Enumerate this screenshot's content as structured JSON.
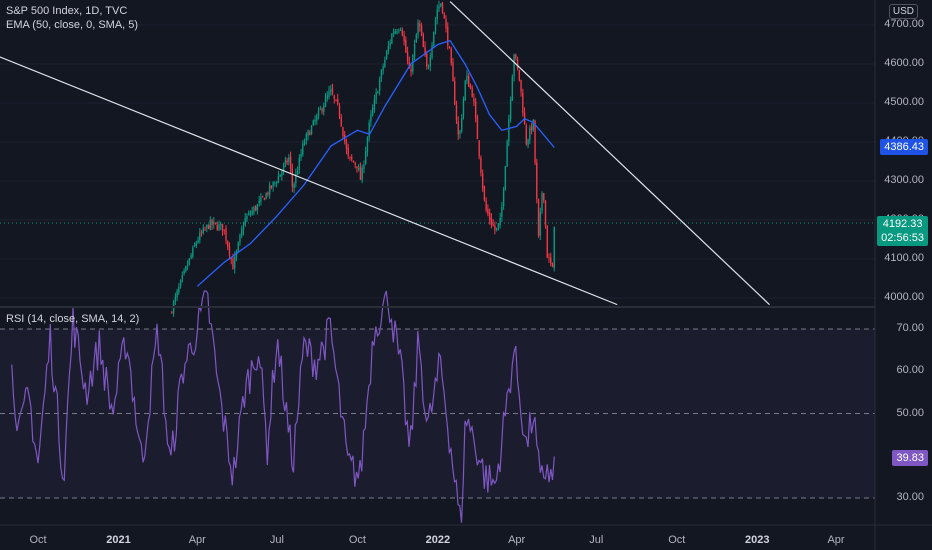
{
  "chart_data": [
    {
      "type": "candlestick",
      "title": "S&P 500 Index, 1D, TVC",
      "indicator": "EMA (50, close, 0, SMA, 5)",
      "currency": "USD",
      "ylim": [
        3975,
        4760
      ],
      "y_ticks": [
        "4000.00",
        "4100.00",
        "4200.00",
        "4300.00",
        "4400.00",
        "4500.00",
        "4600.00",
        "4700.00"
      ],
      "x_ticks": [
        {
          "label": "Oct",
          "year": false
        },
        {
          "label": "2021",
          "year": true
        },
        {
          "label": "Apr",
          "year": false
        },
        {
          "label": "Jul",
          "year": false
        },
        {
          "label": "Oct",
          "year": false
        },
        {
          "label": "2022",
          "year": true
        },
        {
          "label": "Apr",
          "year": false
        },
        {
          "label": "Jul",
          "year": false
        },
        {
          "label": "Oct",
          "year": false
        },
        {
          "label": "2023",
          "year": true
        },
        {
          "label": "Apr",
          "year": false
        }
      ],
      "last_price": "4192.33",
      "countdown": "02:56:53",
      "ema_value": "4386.43",
      "price_path": [
        [
          "2021-03-01",
          3960
        ],
        [
          "2021-03-15",
          4050
        ],
        [
          "2021-04-01",
          4150
        ],
        [
          "2021-04-15",
          4190
        ],
        [
          "2021-05-01",
          4180
        ],
        [
          "2021-05-12",
          4080
        ],
        [
          "2021-05-25",
          4200
        ],
        [
          "2021-06-10",
          4240
        ],
        [
          "2021-06-30",
          4300
        ],
        [
          "2021-07-15",
          4360
        ],
        [
          "2021-07-19",
          4280
        ],
        [
          "2021-08-01",
          4400
        ],
        [
          "2021-08-15",
          4460
        ],
        [
          "2021-08-31",
          4530
        ],
        [
          "2021-09-10",
          4480
        ],
        [
          "2021-09-20",
          4360
        ],
        [
          "2021-10-01",
          4340
        ],
        [
          "2021-10-05",
          4300
        ],
        [
          "2021-10-15",
          4450
        ],
        [
          "2021-10-31",
          4600
        ],
        [
          "2021-11-10",
          4680
        ],
        [
          "2021-11-20",
          4700
        ],
        [
          "2021-11-30",
          4570
        ],
        [
          "2021-12-10",
          4710
        ],
        [
          "2021-12-20",
          4580
        ],
        [
          "2021-12-31",
          4740
        ],
        [
          "2022-01-05",
          4760
        ],
        [
          "2022-01-15",
          4620
        ],
        [
          "2022-01-25",
          4400
        ],
        [
          "2022-02-02",
          4570
        ],
        [
          "2022-02-10",
          4520
        ],
        [
          "2022-02-24",
          4230
        ],
        [
          "2022-03-08",
          4170
        ],
        [
          "2022-03-14",
          4200
        ],
        [
          "2022-03-29",
          4630
        ],
        [
          "2022-04-05",
          4550
        ],
        [
          "2022-04-12",
          4400
        ],
        [
          "2022-04-20",
          4450
        ],
        [
          "2022-04-26",
          4150
        ],
        [
          "2022-05-01",
          4300
        ],
        [
          "2022-05-06",
          4110
        ],
        [
          "2022-05-12",
          4070
        ],
        [
          "2022-05-14",
          4192
        ]
      ],
      "ema_path": [
        [
          "2021-04-01",
          4030
        ],
        [
          "2021-05-01",
          4090
        ],
        [
          "2021-06-01",
          4140
        ],
        [
          "2021-07-01",
          4210
        ],
        [
          "2021-08-01",
          4290
        ],
        [
          "2021-09-01",
          4390
        ],
        [
          "2021-10-01",
          4430
        ],
        [
          "2021-10-15",
          4420
        ],
        [
          "2021-11-01",
          4490
        ],
        [
          "2021-12-01",
          4600
        ],
        [
          "2022-01-01",
          4650
        ],
        [
          "2022-01-15",
          4660
        ],
        [
          "2022-02-01",
          4600
        ],
        [
          "2022-02-15",
          4540
        ],
        [
          "2022-03-01",
          4470
        ],
        [
          "2022-03-15",
          4430
        ],
        [
          "2022-04-01",
          4440
        ],
        [
          "2022-04-10",
          4460
        ],
        [
          "2022-04-20",
          4450
        ],
        [
          "2022-05-14",
          4386
        ]
      ],
      "trendlines": [
        {
          "from": [
            "2020-07-25",
            4640
          ],
          "to": [
            "2022-07-25",
            3983
          ]
        },
        {
          "from": [
            "2022-01-15",
            4760
          ],
          "to": [
            "2023-01-15",
            3983
          ]
        }
      ]
    },
    {
      "type": "line",
      "title": "RSI (14, close, SMA, 14, 2)",
      "ylim": [
        22,
        79
      ],
      "y_ticks": [
        "30.00",
        "40.00",
        "50.00",
        "60.00",
        "70.00"
      ],
      "levels": [
        70,
        50,
        30
      ],
      "last_value": "39.83",
      "series": [
        [
          "2020-09-01",
          60
        ],
        [
          "2020-09-10",
          45
        ],
        [
          "2020-09-20",
          55
        ],
        [
          "2020-10-01",
          38
        ],
        [
          "2020-10-15",
          68
        ],
        [
          "2020-10-30",
          35
        ],
        [
          "2020-11-10",
          72
        ],
        [
          "2020-11-25",
          55
        ],
        [
          "2020-12-10",
          66
        ],
        [
          "2020-12-25",
          50
        ],
        [
          "2021-01-10",
          68
        ],
        [
          "2021-01-28",
          38
        ],
        [
          "2021-02-15",
          70
        ],
        [
          "2021-03-01",
          37
        ],
        [
          "2021-03-15",
          60
        ],
        [
          "2021-04-01",
          70
        ],
        [
          "2021-04-12",
          78
        ],
        [
          "2021-04-25",
          56
        ],
        [
          "2021-05-12",
          35
        ],
        [
          "2021-05-25",
          55
        ],
        [
          "2021-06-10",
          66
        ],
        [
          "2021-06-20",
          42
        ],
        [
          "2021-07-01",
          68
        ],
        [
          "2021-07-19",
          38
        ],
        [
          "2021-08-01",
          66
        ],
        [
          "2021-08-15",
          62
        ],
        [
          "2021-08-31",
          70
        ],
        [
          "2021-09-20",
          38
        ],
        [
          "2021-10-04",
          35
        ],
        [
          "2021-10-20",
          70
        ],
        [
          "2021-11-05",
          78
        ],
        [
          "2021-11-20",
          60
        ],
        [
          "2021-11-30",
          40
        ],
        [
          "2021-12-10",
          68
        ],
        [
          "2021-12-20",
          46
        ],
        [
          "2022-01-04",
          62
        ],
        [
          "2022-01-27",
          23
        ],
        [
          "2022-02-02",
          50
        ],
        [
          "2022-02-24",
          35
        ],
        [
          "2022-03-08",
          33
        ],
        [
          "2022-03-29",
          65
        ],
        [
          "2022-04-12",
          42
        ],
        [
          "2022-04-20",
          50
        ],
        [
          "2022-04-28",
          33
        ],
        [
          "2022-05-06",
          38
        ],
        [
          "2022-05-12",
          33
        ],
        [
          "2022-05-14",
          39.83
        ]
      ]
    }
  ]
}
